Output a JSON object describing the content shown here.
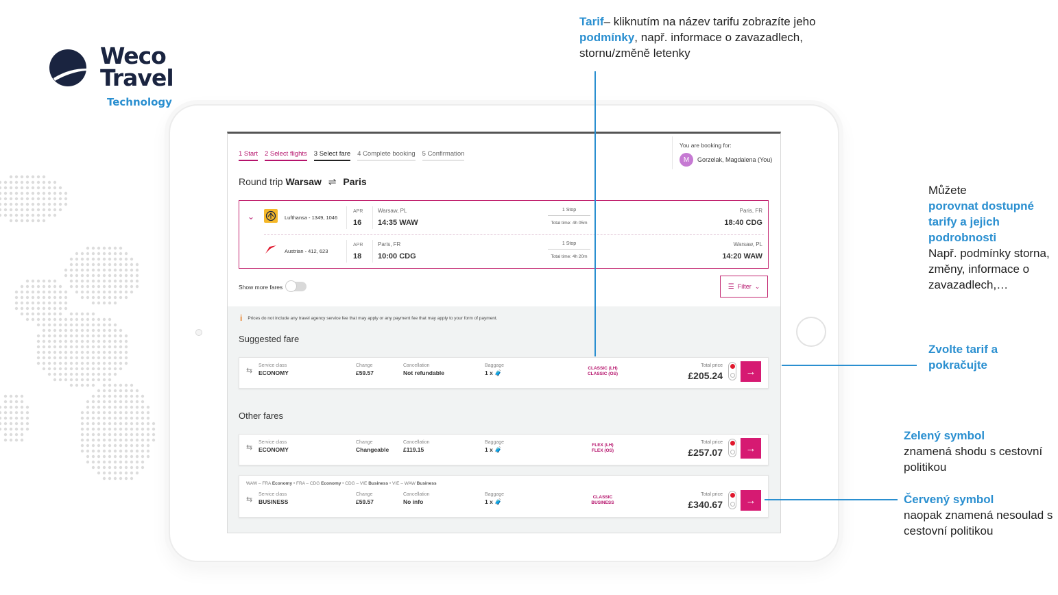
{
  "brand": {
    "name_line1": "Weco",
    "name_line2": "Travel",
    "subtitle": "Technology",
    "accent": "#2a8fd0",
    "navy": "#1a2440"
  },
  "app": {
    "steps": [
      {
        "label": "1  Start",
        "state": "done"
      },
      {
        "label": "2  Select flights",
        "state": "done"
      },
      {
        "label": "3  Select fare",
        "state": "current"
      },
      {
        "label": "4  Complete booking",
        "state": "todo"
      },
      {
        "label": "5  Confirmation",
        "state": "todo"
      }
    ],
    "booking_for_label": "You are booking for:",
    "user_initial": "M",
    "user_name": "Gorzelak, Magdalena (You)",
    "trip_prefix": "Round trip",
    "trip_from": "Warsaw",
    "trip_to": "Paris",
    "trip_swap_icon": "⇌",
    "flights": [
      {
        "airline": "Lufthansa - 1349, 1046",
        "airline_icon": "lufthansa-logo-icon",
        "month": "APR",
        "day": "16",
        "from_city": "Warsaw, PL",
        "from_time": "14:35 WAW",
        "stops": "1 Stop",
        "total": "Total time: 4h 05m",
        "to_city": "Paris, FR",
        "to_time": "18:40 CDG"
      },
      {
        "airline": "Austrian - 412, 623",
        "airline_icon": "austrian-logo-icon",
        "month": "APR",
        "day": "18",
        "from_city": "Paris, FR",
        "from_time": "10:00 CDG",
        "stops": "1 Stop",
        "total": "Total time: 4h 20m",
        "to_city": "Warsaw, PL",
        "to_time": "14:20 WAW"
      }
    ],
    "show_more_fares_label": "Show more fares",
    "show_more_fares_on": false,
    "filter_label": "Filter",
    "notice": "Prices do not include any travel agency service fee that may apply or any payment fee that may apply to your form of payment.",
    "suggested_title": "Suggested fare",
    "other_title": "Other fares",
    "col_labels": {
      "service_class": "Service class",
      "change": "Change",
      "cancellation": "Cancellation",
      "baggage": "Baggage",
      "total_price": "Total price"
    },
    "fares": [
      {
        "service_class": "ECONOMY",
        "change": "£59.57",
        "cancellation": "Not refundable",
        "baggage": "1 x 🧳",
        "fare_line1": "CLASSIC (LH)",
        "fare_line2": "CLASSIC (OS)",
        "price": "£205.24",
        "policy": "red",
        "select_icon": "→"
      },
      {
        "service_class": "ECONOMY",
        "change": "Changeable",
        "cancellation": "£119.15",
        "baggage": "1 x 🧳",
        "fare_line1": "FLEX (LH)",
        "fare_line2": "FLEX (OS)",
        "price": "£257.07",
        "policy": "red",
        "select_icon": "→"
      },
      {
        "route": [
          {
            "seg": "WAW – FRA",
            "cls": "Economy"
          },
          {
            "seg": "FRA – CDG",
            "cls": "Economy"
          },
          {
            "seg": "CDG – VIE",
            "cls": "Business"
          },
          {
            "seg": "VIE – WAW",
            "cls": "Business"
          }
        ],
        "service_class": "BUSINESS",
        "change": "£59.57",
        "cancellation": "No info",
        "baggage": "1 x 🧳",
        "fare_line1": "CLASSIC",
        "fare_line2": "BUSINESS",
        "price": "£340.67",
        "policy": "red",
        "select_icon": "→"
      }
    ],
    "colors": {
      "primary_pink": "#d61a72",
      "policy_red": "#e0182d",
      "policy_green": "#2fae4a"
    }
  },
  "annotations": {
    "tarif": {
      "hl1": "Tarif",
      "t1": "– kliknutím na název tarifu zobrazíte jeho ",
      "hl2": "podmínky",
      "t2": ", např. informace o zavazadlech, stornu/změně letenky"
    },
    "compare": {
      "t1": "Můžete",
      "hl": "porovnat dostupné tarify a jejich podrobnosti",
      "t2": "Např. podmínky storna, změny, informace o zavazadlech,…"
    },
    "choose": {
      "hl": "Zvolte tarif a pokračujte"
    },
    "green": {
      "hl": "Zelený symbol",
      "t": "znamená shodu s cestovní politikou"
    },
    "red": {
      "hl": "Červený symbol",
      "t": "naopak znamená nesoulad s cestovní politikou"
    }
  }
}
